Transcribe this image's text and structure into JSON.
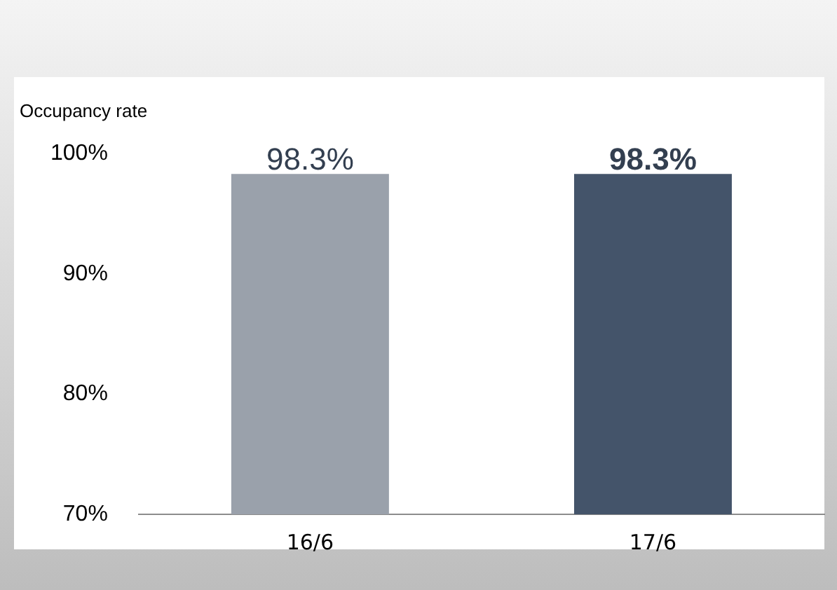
{
  "chart_data": {
    "type": "bar",
    "title": "Occupancy rate",
    "categories": [
      "16/6",
      "17/6"
    ],
    "values": [
      98.3,
      98.3
    ],
    "colors": [
      "#9aa1ab",
      "#44546a"
    ],
    "value_labels": [
      "98.3%",
      "98.3%"
    ],
    "ylim": [
      70,
      100
    ],
    "yticks": [
      {
        "value": 70,
        "label": "70%"
      },
      {
        "value": 80,
        "label": "80%"
      },
      {
        "value": 90,
        "label": "90%"
      },
      {
        "value": 100,
        "label": "100%"
      }
    ],
    "grid": false,
    "legend": false
  }
}
